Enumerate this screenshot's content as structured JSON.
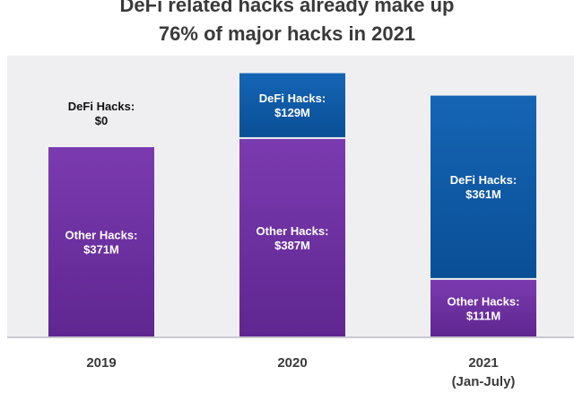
{
  "chart_data": {
    "type": "bar",
    "stacked": true,
    "title_lines": [
      "DeFi related hacks already make up",
      "76% of major hacks in 2021"
    ],
    "xlabel": "",
    "ylabel": "",
    "categories": [
      "2019",
      "2020",
      "2021"
    ],
    "category_sublabels": [
      "",
      "",
      "(Jan-July)"
    ],
    "series": [
      {
        "name": "Other Hacks",
        "values": [
          371,
          387,
          111
        ],
        "labels": [
          "Other Hacks:\n$371M",
          "Other Hacks:\n$387M",
          "Other Hacks:\n$111M"
        ],
        "color": "#6e2fa3"
      },
      {
        "name": "DeFi Hacks",
        "values": [
          0,
          129,
          361
        ],
        "labels": [
          "DeFi Hacks:\n$0",
          "DeFi Hacks:\n$129M",
          "DeFi Hacks:\n$361M"
        ],
        "color": "#0e5aa8"
      }
    ],
    "unit": "$M",
    "grid": false,
    "legend": "none"
  }
}
